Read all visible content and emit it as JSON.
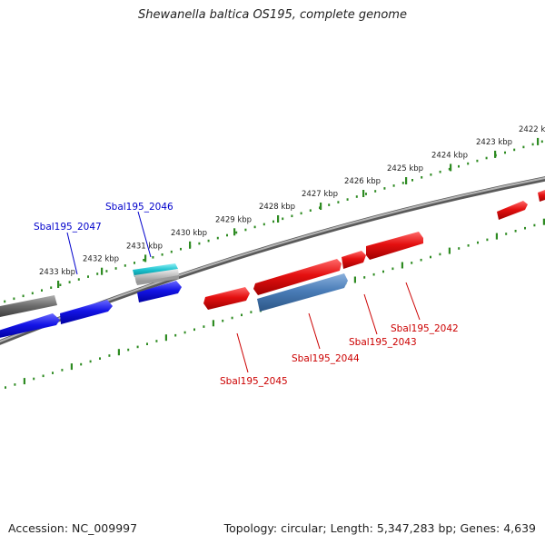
{
  "title": "Shewanella baltica OS195, complete genome",
  "footer": {
    "accession": "Accession: NC_009997",
    "summary": "Topology: circular; Length: 5,347,283 bp; Genes: 4,639"
  },
  "colors": {
    "backbone": "#8c8c8c",
    "tick_ring": "#2e8b22",
    "gene_red": "#e01010",
    "gene_blue": "#1414e6",
    "gene_steel": "#4a7db8",
    "gene_gray": "#707070",
    "gene_cyan": "#19c0cc",
    "label_red": "#cc0000",
    "label_blue": "#0000cc"
  },
  "kbp_ticks": [
    {
      "label": "2422 kbp"
    },
    {
      "label": "2423 kbp"
    },
    {
      "label": "2424 kbp"
    },
    {
      "label": "2425 kbp"
    },
    {
      "label": "2426 kbp"
    },
    {
      "label": "2427 kbp"
    },
    {
      "label": "2428 kbp"
    },
    {
      "label": "2429 kbp"
    },
    {
      "label": "2430 kbp"
    },
    {
      "label": "2431 kbp"
    },
    {
      "label": "2432 kbp"
    },
    {
      "label": "2433 kbp"
    }
  ],
  "gene_labels": [
    {
      "name": "Sbal195_2042",
      "color": "red"
    },
    {
      "name": "Sbal195_2043",
      "color": "red"
    },
    {
      "name": "Sbal195_2044",
      "color": "red"
    },
    {
      "name": "Sbal195_2045",
      "color": "red"
    },
    {
      "name": "Sbal195_2046",
      "color": "blue"
    },
    {
      "name": "Sbal195_2047",
      "color": "blue"
    }
  ]
}
